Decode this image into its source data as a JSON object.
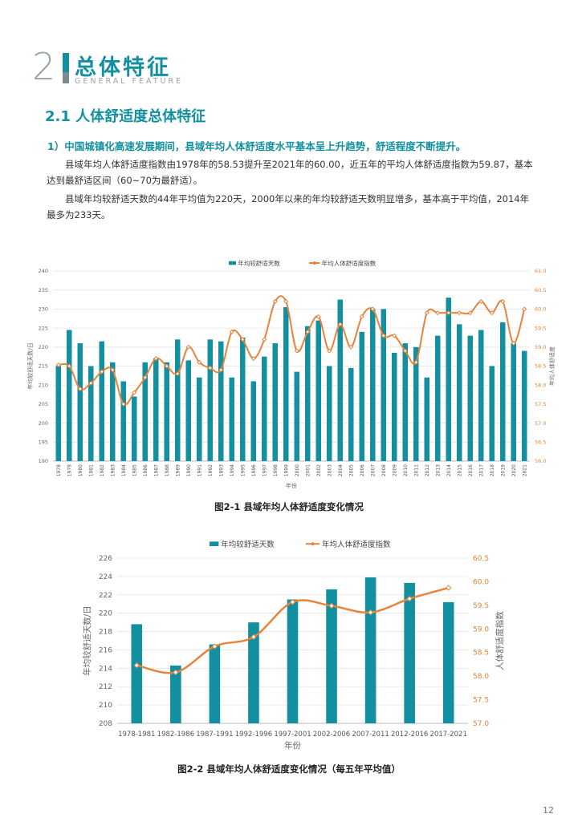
{
  "header": {
    "number": "2",
    "title": "总体特征",
    "subtitle": "GENERAL FEATURE"
  },
  "section": {
    "title": "2.1 人体舒适度总体特征",
    "subtitle": "1）中国城镇化高速发展期间，县域年均人体舒适度水平基本呈上升趋势，舒适程度不断提升。"
  },
  "paragraphs": [
    "县域年均人体舒适度指数由1978年的58.53提升至2021年的60.00，近五年的平均人体舒适度指数为59.87，基本达到最舒适区间（60~70为最舒适）。",
    "县域年均较舒适天数的44年平均值为220天，2000年以来的年均较舒适天数明显增多，基本高于平均值，2014年最多为233天。"
  ],
  "chart_data": [
    {
      "type": "bar",
      "title": "",
      "caption": "图2-1 县域年均人体舒适度变化情况",
      "xlabel": "年份",
      "ylabel": "年均较舒适天数/日",
      "y2label": "年均人体舒适度",
      "ylim": [
        190,
        240
      ],
      "y2lim": [
        56.0,
        61.0
      ],
      "yticks": [
        "240",
        "235",
        "230",
        "225",
        "220",
        "215",
        "210",
        "205",
        "200",
        "195",
        "190"
      ],
      "y2ticks": [
        "61.0",
        "60.5",
        "60.0",
        "59.5",
        "59.0",
        "58.5",
        "58.0",
        "57.5",
        "57.0",
        "56.5",
        "56.0"
      ],
      "categories": [
        "1978",
        "1979",
        "1980",
        "1981",
        "1982",
        "1983",
        "1984",
        "1985",
        "1986",
        "1987",
        "1988",
        "1989",
        "1990",
        "1991",
        "1992",
        "1993",
        "1994",
        "1995",
        "1996",
        "1997",
        "1998",
        "1999",
        "2000",
        "2001",
        "2002",
        "2003",
        "2004",
        "2005",
        "2006",
        "2007",
        "2008",
        "2009",
        "2010",
        "2011",
        "2012",
        "2013",
        "2014",
        "2015",
        "2016",
        "2017",
        "2018",
        "2019",
        "2020",
        "2021"
      ],
      "series": [
        {
          "name": "年均较舒适天数",
          "kind": "bar",
          "color": "#12909f",
          "values": [
            215,
            224.5,
            221,
            215,
            221.5,
            216,
            211,
            207,
            216,
            217,
            216,
            222,
            216.5,
            212,
            222,
            221.5,
            212,
            222.5,
            211,
            217.5,
            221,
            230.5,
            213.5,
            225.5,
            227,
            215,
            232.5,
            214.5,
            224,
            230,
            230,
            218.5,
            221,
            220,
            212,
            223,
            233,
            226,
            223,
            224.5,
            215,
            226.5,
            221,
            219
          ]
        },
        {
          "name": "年均人体舒适度指数",
          "kind": "line",
          "color": "#e7833a",
          "values": [
            58.53,
            58.5,
            57.9,
            58.05,
            58.35,
            58.4,
            57.5,
            57.8,
            58.2,
            58.7,
            58.5,
            58.3,
            59.0,
            58.6,
            58.45,
            58.4,
            59.4,
            59.2,
            58.7,
            59.2,
            60.2,
            60.2,
            58.9,
            59.4,
            59.8,
            58.9,
            59.6,
            59.0,
            59.8,
            60.0,
            59.3,
            59.3,
            58.9,
            58.6,
            59.9,
            59.9,
            59.9,
            59.9,
            59.9,
            60.2,
            59.9,
            60.2,
            59.1,
            60.0
          ]
        }
      ]
    },
    {
      "type": "bar",
      "title": "",
      "caption": "图2-2 县域年均人体舒适度变化情况（每五年平均值）",
      "xlabel": "年份",
      "ylabel": "年均较舒适天数/日",
      "y2label": "人体舒适度指数",
      "ylim": [
        208,
        226
      ],
      "y2lim": [
        57.0,
        60.5
      ],
      "yticks": [
        "226",
        "224",
        "222",
        "220",
        "218",
        "216",
        "214",
        "212",
        "210",
        "208"
      ],
      "y2ticks": [
        "60.5",
        "60.0",
        "59.5",
        "59.0",
        "58.5",
        "58.0",
        "57.5",
        "57.0"
      ],
      "categories": [
        "1978-1981",
        "1982-1986",
        "1987-1991",
        "1992-1996",
        "1997-2001",
        "2002-2006",
        "2007-2011",
        "2012-2016",
        "2017-2021"
      ],
      "series": [
        {
          "name": "年均较舒适天数",
          "kind": "bar",
          "color": "#12909f",
          "values": [
            218.8,
            214.3,
            216.6,
            219.0,
            221.5,
            222.6,
            223.9,
            223.3,
            221.2
          ]
        },
        {
          "name": "年均人体舒适度指数",
          "kind": "line",
          "color": "#e7833a",
          "values": [
            58.23,
            58.08,
            58.63,
            58.83,
            59.57,
            59.49,
            59.35,
            59.64,
            59.87
          ]
        }
      ]
    }
  ],
  "page_number": "12"
}
